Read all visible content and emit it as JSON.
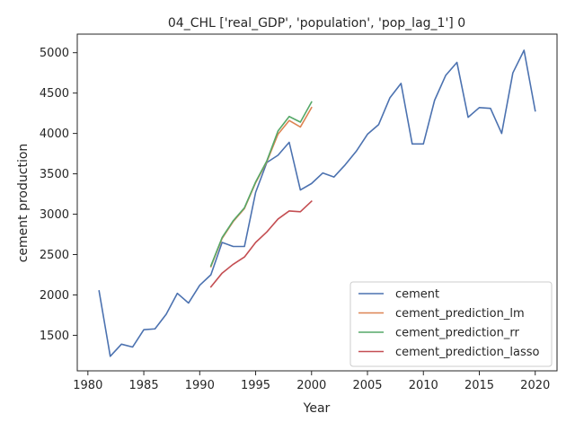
{
  "chart_data": {
    "type": "line",
    "title": "04_CHL ['real_GDP', 'population', 'pop_lag_1'] 0",
    "xlabel": "Year",
    "ylabel": "cement production",
    "xlim": [
      1979.05,
      2021.95
    ],
    "ylim": [
      1060,
      5230
    ],
    "xticks": [
      1980,
      1985,
      1990,
      1995,
      2000,
      2005,
      2010,
      2015,
      2020
    ],
    "yticks": [
      1500,
      2000,
      2500,
      3000,
      3500,
      4000,
      4500,
      5000
    ],
    "grid": false,
    "legend": "lower-right",
    "series": [
      {
        "name": "cement",
        "color": "#4c72b0",
        "x": [
          1981,
          1982,
          1983,
          1984,
          1985,
          1986,
          1987,
          1988,
          1989,
          1990,
          1991,
          1992,
          1993,
          1994,
          1995,
          1996,
          1997,
          1998,
          1999,
          2000,
          2001,
          2002,
          2003,
          2004,
          2005,
          2006,
          2007,
          2008,
          2009,
          2010,
          2011,
          2012,
          2013,
          2014,
          2015,
          2016,
          2017,
          2018,
          2019,
          2020
        ],
        "y": [
          2050,
          1240,
          1390,
          1355,
          1570,
          1580,
          1760,
          2020,
          1900,
          2120,
          2250,
          2650,
          2600,
          2600,
          3270,
          3640,
          3730,
          3890,
          3300,
          3380,
          3510,
          3460,
          3610,
          3780,
          3990,
          4110,
          4440,
          4620,
          3870,
          3870,
          4410,
          4720,
          4880,
          4200,
          4320,
          4310,
          4000,
          4750,
          5030,
          4280
        ]
      },
      {
        "name": "cement_prediction_lm",
        "color": "#dd8452",
        "x": [
          1991,
          1992,
          1993,
          1994,
          1995,
          1996,
          1997,
          1998,
          1999,
          2000
        ],
        "y": [
          2350,
          2700,
          2910,
          3070,
          3390,
          3650,
          3990,
          4160,
          4080,
          4320
        ]
      },
      {
        "name": "cement_prediction_rr",
        "color": "#55a868",
        "x": [
          1991,
          1992,
          1993,
          1994,
          1995,
          1996,
          1997,
          1998,
          1999,
          2000
        ],
        "y": [
          2360,
          2710,
          2920,
          3080,
          3400,
          3660,
          4030,
          4210,
          4140,
          4390
        ]
      },
      {
        "name": "cement_prediction_lasso",
        "color": "#c44e52",
        "x": [
          1991,
          1992,
          1993,
          1994,
          1995,
          1996,
          1997,
          1998,
          1999,
          2000
        ],
        "y": [
          2100,
          2270,
          2380,
          2470,
          2650,
          2780,
          2940,
          3040,
          3030,
          3160
        ]
      }
    ]
  }
}
